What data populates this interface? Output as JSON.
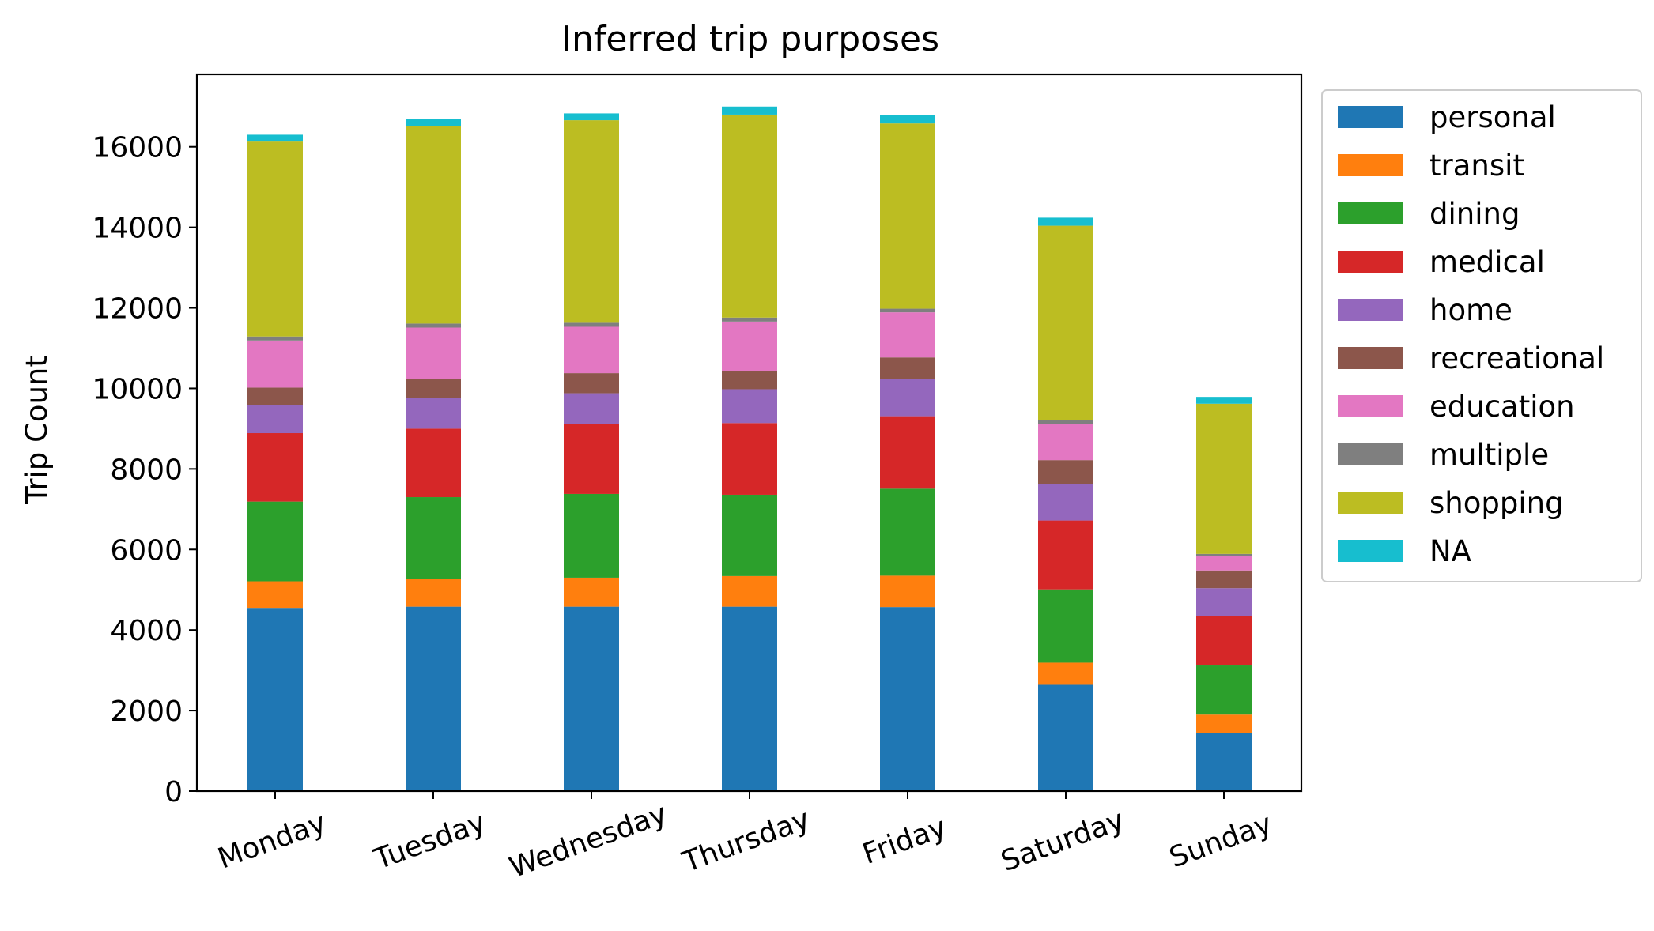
{
  "chart_data": {
    "type": "bar",
    "stacked": true,
    "title": "Inferred trip purposes",
    "xlabel": "",
    "ylabel": "Trip Count",
    "ylim": [
      0,
      17800
    ],
    "yticks": [
      0,
      2000,
      4000,
      6000,
      8000,
      10000,
      12000,
      14000,
      16000
    ],
    "categories": [
      "Monday",
      "Tuesday",
      "Wednesday",
      "Thursday",
      "Friday",
      "Saturday",
      "Sunday"
    ],
    "legend_position": "outside right, top",
    "series": [
      {
        "name": "personal",
        "color": "#1f77b4",
        "values": [
          4550,
          4580,
          4580,
          4580,
          4570,
          2640,
          1440
        ]
      },
      {
        "name": "transit",
        "color": "#ff7f0e",
        "values": [
          660,
          680,
          720,
          760,
          780,
          550,
          460
        ]
      },
      {
        "name": "dining",
        "color": "#2ca02c",
        "values": [
          1980,
          2040,
          2080,
          2020,
          2160,
          1820,
          1220
        ]
      },
      {
        "name": "medical",
        "color": "#d62728",
        "values": [
          1700,
          1700,
          1740,
          1780,
          1800,
          1710,
          1220
        ]
      },
      {
        "name": "home",
        "color": "#9467bd",
        "values": [
          690,
          760,
          760,
          840,
          920,
          900,
          700
        ]
      },
      {
        "name": "recreational",
        "color": "#8c564b",
        "values": [
          440,
          480,
          500,
          460,
          540,
          600,
          440
        ]
      },
      {
        "name": "education",
        "color": "#e377c2",
        "values": [
          1170,
          1270,
          1150,
          1220,
          1120,
          900,
          350
        ]
      },
      {
        "name": "multiple",
        "color": "#7f7f7f",
        "values": [
          100,
          100,
          100,
          100,
          90,
          90,
          60
        ]
      },
      {
        "name": "shopping",
        "color": "#bcbd22",
        "values": [
          4840,
          4910,
          5030,
          5040,
          4600,
          4830,
          3730
        ]
      },
      {
        "name": "NA",
        "color": "#17becf",
        "values": [
          170,
          180,
          170,
          200,
          210,
          200,
          170
        ]
      }
    ]
  }
}
